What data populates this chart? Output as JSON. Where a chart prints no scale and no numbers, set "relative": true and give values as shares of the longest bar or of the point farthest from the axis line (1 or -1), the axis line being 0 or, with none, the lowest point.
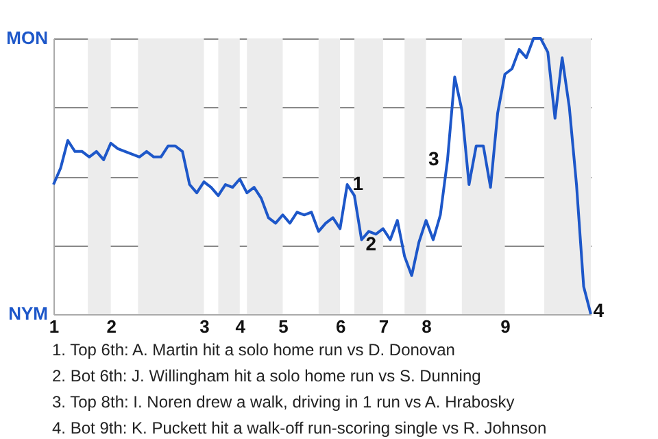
{
  "chart_data": {
    "type": "line",
    "relative": true,
    "categories": [
      "1",
      null,
      null,
      null,
      null,
      null,
      null,
      null,
      "2",
      null,
      null,
      null,
      null,
      null,
      null,
      null,
      null,
      null,
      null,
      null,
      null,
      "3",
      null,
      null,
      null,
      null,
      "4",
      null,
      null,
      null,
      null,
      null,
      "5",
      null,
      null,
      null,
      null,
      null,
      null,
      null,
      "6",
      null,
      null,
      null,
      null,
      null,
      "7",
      null,
      null,
      null,
      null,
      null,
      "8",
      null,
      null,
      null,
      null,
      null,
      null,
      null,
      null,
      null,
      null,
      "9",
      null,
      null,
      null,
      null,
      null,
      null,
      null,
      null,
      null,
      null,
      null,
      null
    ],
    "series": [
      {
        "color": "#1d57c9",
        "values": [
          0.47,
          0.53,
          0.63,
          0.59,
          0.59,
          0.57,
          0.59,
          0.56,
          0.62,
          0.6,
          0.59,
          0.58,
          0.57,
          0.59,
          0.57,
          0.57,
          0.61,
          0.61,
          0.59,
          0.47,
          0.44,
          0.48,
          0.46,
          0.43,
          0.47,
          0.46,
          0.49,
          0.44,
          0.46,
          0.42,
          0.35,
          0.33,
          0.36,
          0.33,
          0.37,
          0.36,
          0.37,
          0.3,
          0.33,
          0.35,
          0.31,
          0.47,
          0.43,
          0.27,
          0.3,
          0.29,
          0.31,
          0.27,
          0.34,
          0.21,
          0.14,
          0.26,
          0.34,
          0.27,
          0.36,
          0.56,
          0.86,
          0.74,
          0.47,
          0.61,
          0.61,
          0.46,
          0.73,
          0.87,
          0.89,
          0.96,
          0.93,
          1,
          1,
          0.95,
          0.71,
          0.93,
          0.75,
          0.47,
          0.1,
          0
        ]
      }
    ],
    "grid": "y",
    "annotations": [
      "MON",
      "NYM",
      "1",
      "2",
      "3",
      "4",
      "1. Top 6th: A. Martin hit a solo home run vs D. Donovan",
      "2. Bot 6th: J. Willingham hit a solo home run vs S. Dunning",
      "3. Top 8th: I. Noren drew a walk, driving in 1 run vs A. Hrabosky",
      "4. Bot 9th: K. Puckett hit a walk-off run-scoring single vs R. Johnson"
    ]
  }
}
